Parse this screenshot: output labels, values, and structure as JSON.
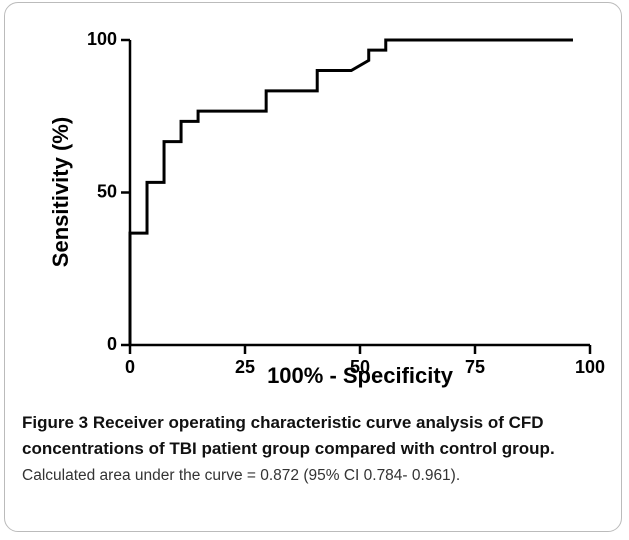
{
  "chart_data": {
    "type": "line",
    "xlabel": "100% - Specificity",
    "ylabel": "Sensitivity (%)",
    "xlim": [
      0,
      100
    ],
    "ylim": [
      0,
      100
    ],
    "xticks": [
      0,
      25,
      50,
      75,
      100
    ],
    "yticks": [
      0,
      50,
      100
    ],
    "x": [
      0,
      0,
      3.7,
      3.7,
      7.4,
      7.4,
      11.1,
      11.1,
      14.8,
      14.8,
      29.6,
      29.6,
      40.7,
      40.7,
      48.1,
      51.9,
      51.9,
      55.6,
      55.6,
      96.3
    ],
    "series": [
      {
        "color": "#000000",
        "values": [
          0,
          36.7,
          36.7,
          53.3,
          53.3,
          66.7,
          66.7,
          73.3,
          73.3,
          76.7,
          76.7,
          83.3,
          83.3,
          90,
          90,
          93.3,
          96.7,
          96.7,
          100,
          100
        ]
      }
    ]
  },
  "caption": {
    "label": "Figure 3",
    "title": "Receiver operating characteristic curve analysis of CFD concentrations of TBI patient group compared with control group.",
    "text": "Calculated area under the curve = 0.872 (95% CI 0.784- 0.961)."
  }
}
